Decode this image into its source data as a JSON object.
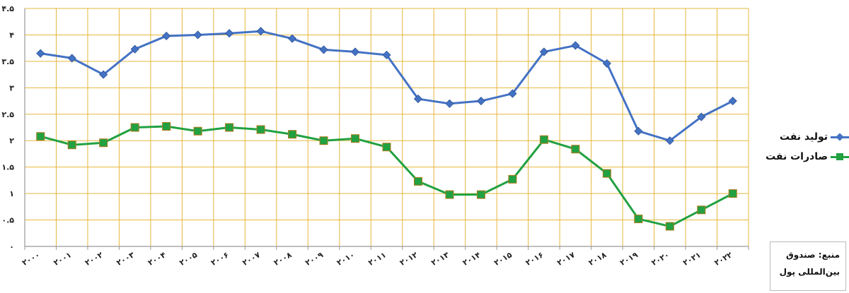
{
  "chart_data": {
    "type": "line",
    "x": [
      "۲۰۰۰",
      "۲۰۰۱",
      "۲۰۰۲",
      "۲۰۰۳",
      "۲۰۰۴",
      "۲۰۰۵",
      "۲۰۰۶",
      "۲۰۰۷",
      "۲۰۰۸",
      "۲۰۰۹",
      "۲۰۱۰",
      "۲۰۱۱",
      "۲۰۱۲",
      "۲۰۱۳",
      "۲۰۱۴",
      "۲۰۱۵",
      "۲۰۱۶",
      "۲۰۱۷",
      "۲۰۱۸",
      "۲۰۱۹",
      "۲۰۲۰",
      "۲۰۲۱",
      "۲۰۲۲"
    ],
    "y_ticks": [
      "۰",
      "۰.۵",
      "۱",
      "۱.۵",
      "۲",
      "۲.۵",
      "۳",
      "۳.۵",
      "۴",
      "۴.۵"
    ],
    "ylim": [
      0,
      4.5
    ],
    "grid": true,
    "legend_position": "right",
    "series": [
      {
        "name": "تولید نفت",
        "color": "#4472c4",
        "marker": "diamond",
        "values": [
          3.65,
          3.56,
          3.25,
          3.73,
          3.98,
          4.0,
          4.03,
          4.07,
          3.93,
          3.72,
          3.68,
          3.62,
          2.79,
          2.7,
          2.75,
          2.89,
          3.68,
          3.8,
          3.46,
          2.18,
          2.0,
          2.45,
          2.75
        ]
      },
      {
        "name": "صادرات نفت",
        "color": "#21a141",
        "marker": "square",
        "values": [
          2.08,
          1.92,
          1.96,
          2.25,
          2.27,
          2.18,
          2.25,
          2.21,
          2.12,
          2.0,
          2.04,
          1.88,
          1.23,
          0.98,
          0.98,
          1.27,
          2.02,
          1.84,
          1.38,
          0.52,
          0.38,
          0.69,
          1.0
        ]
      }
    ],
    "colors": {
      "grid": "#e6b73d",
      "axis": "#999999"
    }
  },
  "source": {
    "line1": "منبع: صندوق",
    "line2": "بین‌المللی پول"
  }
}
